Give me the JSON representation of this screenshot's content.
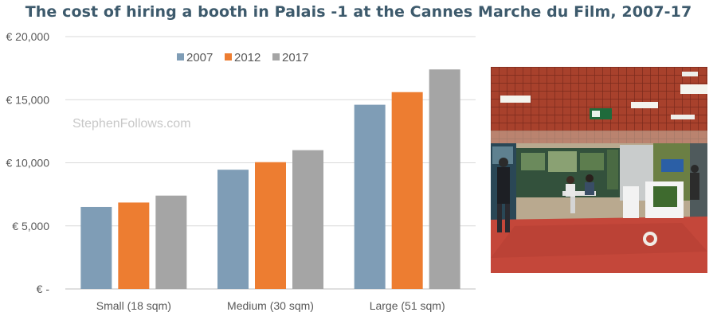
{
  "chart_data": {
    "type": "bar",
    "title": "The cost of hiring a booth in Palais -1 at the Cannes Marche du Film, 2007-17",
    "categories": [
      "Small (18 sqm)",
      "Medium (30 sqm)",
      "Large (51 sqm)"
    ],
    "series": [
      {
        "name": "2007",
        "color": "#7f9db6",
        "values": [
          6500,
          9450,
          14600
        ]
      },
      {
        "name": "2012",
        "color": "#ed7d31",
        "values": [
          6850,
          10050,
          15600
        ]
      },
      {
        "name": "2017",
        "color": "#a5a5a5",
        "values": [
          7400,
          11000,
          17400
        ]
      }
    ],
    "ylim": [
      0,
      20000
    ],
    "yticks": [
      {
        "value": 0,
        "label": "€ -"
      },
      {
        "value": 5000,
        "label": "€ 5,000"
      },
      {
        "value": 10000,
        "label": "€ 10,000"
      },
      {
        "value": 15000,
        "label": "€ 15,000"
      },
      {
        "value": 20000,
        "label": "€ 20,000"
      }
    ],
    "grid": true,
    "legend": "top-center",
    "watermark": "StephenFollows.com"
  }
}
